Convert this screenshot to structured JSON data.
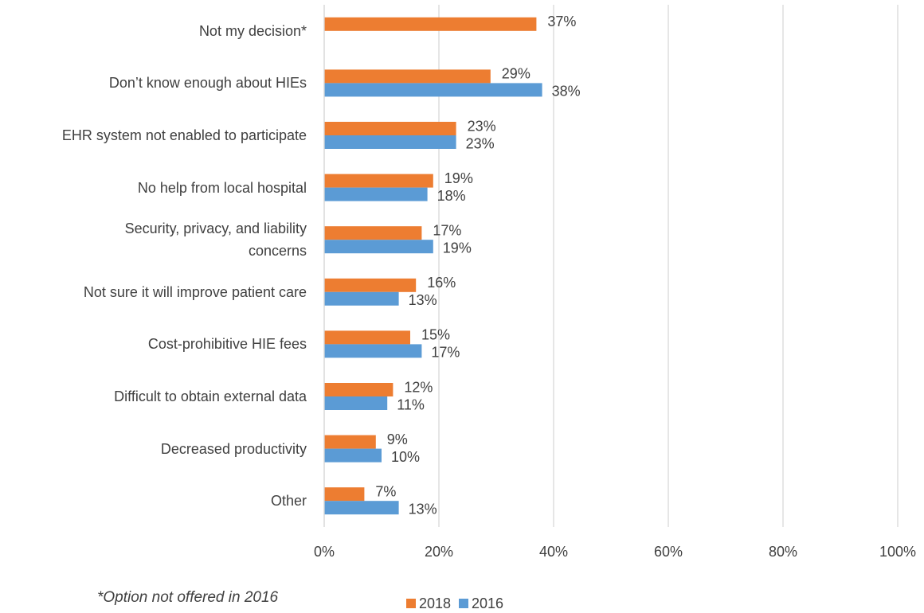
{
  "chart_data": {
    "type": "bar",
    "orientation": "horizontal",
    "categories": [
      "Not my decision*",
      "Don’t know enough about HIEs",
      "EHR system not enabled to participate",
      "No help from local hospital",
      "Security, privacy, and liability concerns",
      "Not sure it will improve patient care",
      "Cost-prohibitive HIE fees",
      "Difficult to obtain external data",
      "Decreased productivity",
      "Other"
    ],
    "series": [
      {
        "name": "2018",
        "color": "#ED7D31",
        "values": [
          37,
          29,
          23,
          19,
          17,
          16,
          15,
          12,
          9,
          7
        ],
        "value_labels": [
          "37%",
          "29%",
          "23%",
          "19%",
          "17%",
          "16%",
          "15%",
          "12%",
          "9%",
          "7%"
        ]
      },
      {
        "name": "2016",
        "color": "#5B9BD5",
        "values": [
          null,
          38,
          23,
          18,
          19,
          13,
          17,
          11,
          10,
          13
        ],
        "value_labels": [
          null,
          "38%",
          "23%",
          "18%",
          "19%",
          "13%",
          "17%",
          "11%",
          "10%",
          "13%"
        ]
      }
    ],
    "xlim": [
      0,
      100
    ],
    "xticks": [
      {
        "value": 0,
        "label": "0%"
      },
      {
        "value": 20,
        "label": "20%"
      },
      {
        "value": 40,
        "label": "40%"
      },
      {
        "value": 60,
        "label": "60%"
      },
      {
        "value": 80,
        "label": "80%"
      },
      {
        "value": 100,
        "label": "100%"
      }
    ],
    "grid": true,
    "legend": "bottom",
    "note": "*Option not offered in 2016"
  }
}
